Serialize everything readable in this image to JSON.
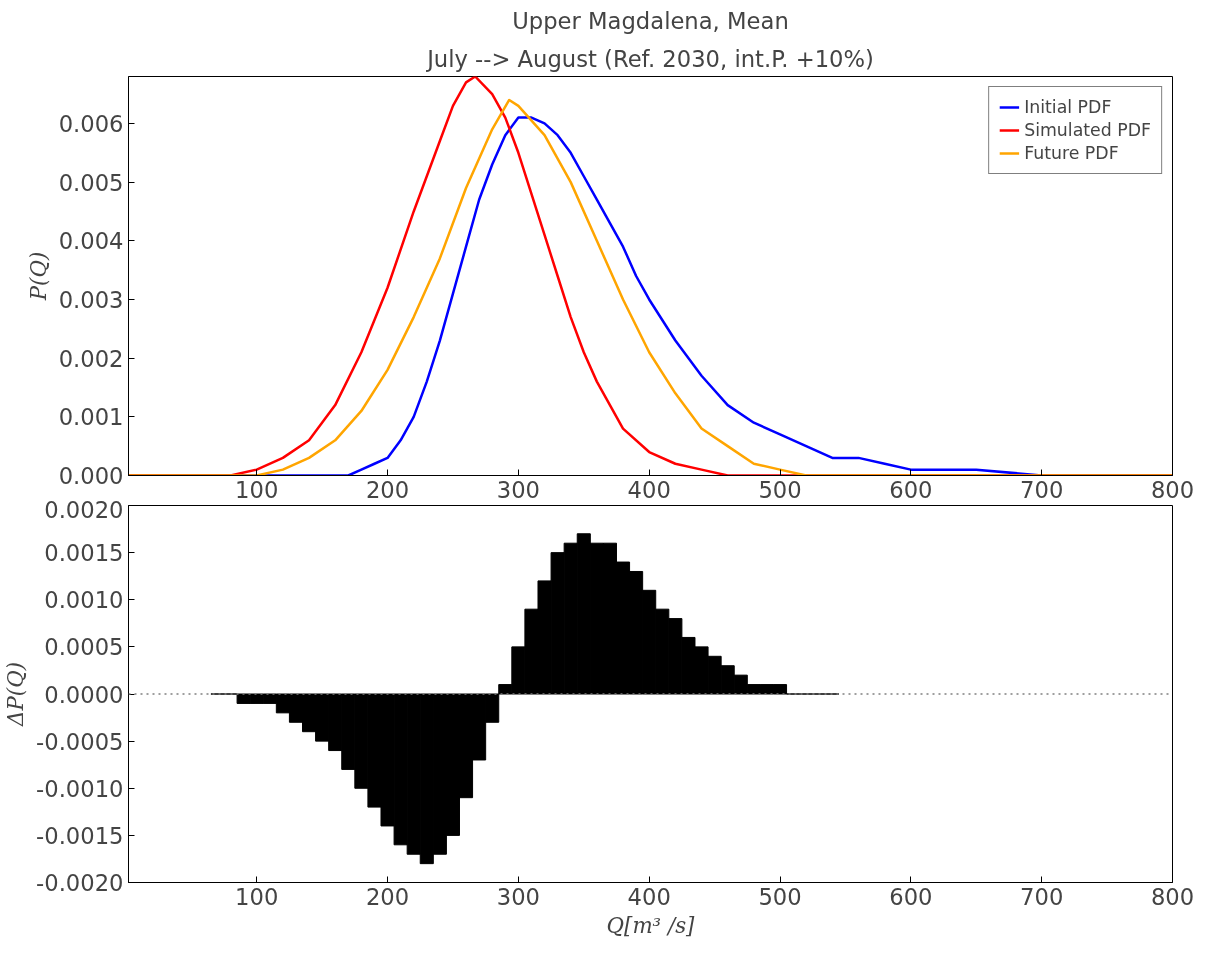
{
  "chart_data": [
    {
      "type": "line",
      "title": "Upper Magdalena, Mean",
      "subtitle": "July --> August (Ref. 2030, int.P. +10%)",
      "ylabel": "P(Q)",
      "xlim": [
        2,
        800
      ],
      "ylim": [
        0,
        0.0068
      ],
      "xticks": [
        100,
        200,
        300,
        400,
        500,
        600,
        700,
        800
      ],
      "yticks": [
        {
          "value": 0,
          "label": "0.000"
        },
        {
          "value": 0.001,
          "label": "0.001"
        },
        {
          "value": 0.002,
          "label": "0.002"
        },
        {
          "value": 0.003,
          "label": "0.003"
        },
        {
          "value": 0.004,
          "label": "0.004"
        },
        {
          "value": 0.005,
          "label": "0.005"
        },
        {
          "value": 0.006,
          "label": "0.006"
        }
      ],
      "grid": false,
      "legend": "top right",
      "marker": "none",
      "line_style": "solid",
      "series": [
        {
          "name": "Initial PDF",
          "color": "#0000ff",
          "x": [
            2,
            160,
            170,
            180,
            190,
            200,
            210,
            220,
            230,
            240,
            250,
            260,
            270,
            280,
            290,
            300,
            310,
            320,
            330,
            340,
            350,
            360,
            370,
            380,
            390,
            400,
            420,
            440,
            460,
            480,
            500,
            520,
            540,
            560,
            580,
            600,
            650,
            700,
            750,
            800
          ],
          "values": [
            0,
            0,
            0,
            0.0001,
            0.0002,
            0.0003,
            0.0006,
            0.001,
            0.0016,
            0.0023,
            0.0031,
            0.0039,
            0.0047,
            0.0053,
            0.0058,
            0.0061,
            0.0061,
            0.006,
            0.0058,
            0.0055,
            0.0051,
            0.0047,
            0.0043,
            0.0039,
            0.0034,
            0.003,
            0.0023,
            0.0017,
            0.0012,
            0.0009,
            0.0007,
            0.0005,
            0.0003,
            0.0003,
            0.0002,
            0.0001,
            0.0001,
            0,
            0,
            0
          ]
        },
        {
          "name": "Simulated PDF",
          "color": "#ff0000",
          "x": [
            2,
            50,
            80,
            100,
            120,
            140,
            160,
            180,
            200,
            220,
            240,
            250,
            260,
            267,
            280,
            290,
            300,
            310,
            320,
            330,
            340,
            350,
            360,
            380,
            400,
            420,
            440,
            460,
            500,
            800
          ],
          "values": [
            0,
            0,
            0,
            0.0001,
            0.0003,
            0.0006,
            0.0012,
            0.0021,
            0.0032,
            0.0045,
            0.0057,
            0.0063,
            0.0067,
            0.0068,
            0.0065,
            0.0061,
            0.0055,
            0.0048,
            0.0041,
            0.0034,
            0.0027,
            0.0021,
            0.0016,
            0.0008,
            0.0004,
            0.0002,
            0.0001,
            0,
            0,
            0
          ]
        },
        {
          "name": "Future PDF",
          "color": "#ffa500",
          "x": [
            2,
            80,
            100,
            120,
            140,
            160,
            180,
            200,
            220,
            240,
            260,
            280,
            293,
            300,
            320,
            340,
            360,
            380,
            400,
            420,
            440,
            460,
            480,
            500,
            520,
            550,
            600,
            800
          ],
          "values": [
            0,
            0,
            0,
            0.0001,
            0.0003,
            0.0006,
            0.0011,
            0.0018,
            0.0027,
            0.0037,
            0.0049,
            0.0059,
            0.0064,
            0.0063,
            0.0058,
            0.005,
            0.004,
            0.003,
            0.0021,
            0.0014,
            0.0008,
            0.0005,
            0.0002,
            0.0001,
            0,
            0,
            0,
            0
          ]
        }
      ]
    },
    {
      "type": "bar",
      "ylabel": "ΔP(Q)",
      "xlabel": "Q[m³ /s]",
      "xlim": [
        2,
        800
      ],
      "ylim": [
        -0.002,
        0.002
      ],
      "xticks": [
        100,
        200,
        300,
        400,
        500,
        600,
        700,
        800
      ],
      "yticks": [
        {
          "value": -0.002,
          "label": "-0.0020"
        },
        {
          "value": -0.0015,
          "label": "-0.0015"
        },
        {
          "value": -0.001,
          "label": "-0.0010"
        },
        {
          "value": -0.0005,
          "label": "-0.0005"
        },
        {
          "value": 0,
          "label": "0.0000"
        },
        {
          "value": 0.0005,
          "label": "0.0005"
        },
        {
          "value": 0.001,
          "label": "0.0010"
        },
        {
          "value": 0.0015,
          "label": "0.0015"
        },
        {
          "value": 0.002,
          "label": "0.0020"
        }
      ],
      "grid": false,
      "legend": false,
      "ref_lines": [
        {
          "axis": "y",
          "value": 0,
          "color": "#808080",
          "line_style": "dotted"
        }
      ],
      "series": [
        {
          "color": "#000000",
          "x": [
            70,
            80,
            90,
            100,
            110,
            120,
            130,
            140,
            150,
            160,
            170,
            180,
            190,
            200,
            210,
            220,
            230,
            240,
            250,
            260,
            270,
            280,
            290,
            300,
            310,
            320,
            330,
            340,
            350,
            360,
            370,
            380,
            390,
            400,
            410,
            420,
            430,
            440,
            450,
            460,
            470,
            480,
            490,
            500,
            510,
            520,
            530,
            540
          ],
          "values": [
            0,
            0,
            -0.0001,
            -0.0001,
            -0.0001,
            -0.0002,
            -0.0003,
            -0.0004,
            -0.0005,
            -0.0006,
            -0.0008,
            -0.001,
            -0.0012,
            -0.0014,
            -0.0016,
            -0.0017,
            -0.0018,
            -0.0017,
            -0.0015,
            -0.0011,
            -0.0007,
            -0.0003,
            0.0001,
            0.0005,
            0.0009,
            0.0012,
            0.0015,
            0.0016,
            0.0017,
            0.0016,
            0.0016,
            0.0014,
            0.0013,
            0.0011,
            0.0009,
            0.0008,
            0.0006,
            0.0005,
            0.0004,
            0.0003,
            0.0002,
            0.0001,
            0.0001,
            0.0001,
            0,
            0,
            0,
            0
          ]
        }
      ]
    }
  ]
}
